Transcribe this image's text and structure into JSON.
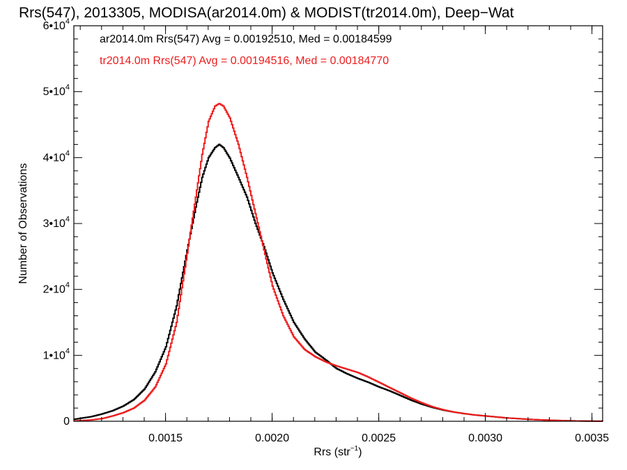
{
  "chart_data": {
    "type": "line",
    "title": "Rrs(547), 2013305, MODISA(ar2014.0m) & MODIST(tr2014.0m), Deep−Wat",
    "xlabel": "Rrs (str",
    "xlabel_sup": "−1",
    "xlabel_close": ")",
    "ylabel": "Number of Observations",
    "xlim": [
      0.00107,
      0.00355
    ],
    "ylim": [
      0,
      60000
    ],
    "x_ticks": [
      0.0015,
      0.002,
      0.0025,
      0.003,
      0.0035
    ],
    "x_tick_labels": [
      "0.0015",
      "0.0020",
      "0.0025",
      "0.0030",
      "0.0035"
    ],
    "y_ticks": [
      {
        "value": 0,
        "mantissa": "0",
        "exp": ""
      },
      {
        "value": 10000,
        "mantissa": "1•10",
        "exp": "4"
      },
      {
        "value": 20000,
        "mantissa": "2•10",
        "exp": "4"
      },
      {
        "value": 30000,
        "mantissa": "3•10",
        "exp": "4"
      },
      {
        "value": 40000,
        "mantissa": "4•10",
        "exp": "4"
      },
      {
        "value": 50000,
        "mantissa": "5•10",
        "exp": "4"
      },
      {
        "value": 60000,
        "mantissa": "6•10",
        "exp": "4"
      }
    ],
    "grid": false,
    "legend_position": "top-left",
    "series": [
      {
        "name": "ar2014.0m Rrs(547) Avg = 0.00192510, Med = 0.00184599",
        "color": "#000000",
        "points": [
          [
            0.00107,
            300
          ],
          [
            0.00115,
            700
          ],
          [
            0.0012,
            1100
          ],
          [
            0.00125,
            1600
          ],
          [
            0.0013,
            2300
          ],
          [
            0.00135,
            3300
          ],
          [
            0.0014,
            4900
          ],
          [
            0.00145,
            7500
          ],
          [
            0.0015,
            11300
          ],
          [
            0.00155,
            17500
          ],
          [
            0.0016,
            26000
          ],
          [
            0.00164,
            32500
          ],
          [
            0.00167,
            37000
          ],
          [
            0.0017,
            40000
          ],
          [
            0.00173,
            41500
          ],
          [
            0.00175,
            42000
          ],
          [
            0.00177,
            41500
          ],
          [
            0.0018,
            39900
          ],
          [
            0.00184,
            37000
          ],
          [
            0.00188,
            34000
          ],
          [
            0.00192,
            30000
          ],
          [
            0.00196,
            26500
          ],
          [
            0.002,
            22500
          ],
          [
            0.00205,
            18500
          ],
          [
            0.0021,
            15000
          ],
          [
            0.00215,
            12500
          ],
          [
            0.0022,
            10500
          ],
          [
            0.00225,
            9300
          ],
          [
            0.0023,
            8000
          ],
          [
            0.00235,
            7200
          ],
          [
            0.0024,
            6500
          ],
          [
            0.00245,
            5900
          ],
          [
            0.0025,
            5200
          ],
          [
            0.00255,
            4600
          ],
          [
            0.0026,
            3900
          ],
          [
            0.00265,
            3200
          ],
          [
            0.0027,
            2600
          ],
          [
            0.00275,
            2100
          ],
          [
            0.0028,
            1700
          ],
          [
            0.00285,
            1400
          ],
          [
            0.0029,
            1150
          ],
          [
            0.00295,
            950
          ],
          [
            0.003,
            800
          ],
          [
            0.00305,
            650
          ],
          [
            0.0031,
            500
          ],
          [
            0.00315,
            400
          ],
          [
            0.0032,
            300
          ],
          [
            0.00325,
            220
          ],
          [
            0.0033,
            160
          ],
          [
            0.00335,
            110
          ],
          [
            0.0034,
            70
          ],
          [
            0.00345,
            40
          ],
          [
            0.0035,
            20
          ],
          [
            0.00355,
            10
          ]
        ]
      },
      {
        "name": "tr2014.0m Rrs(547) Avg = 0.00194516, Med = 0.00184770",
        "color": "#ee1c1c",
        "points": [
          [
            0.00107,
            50
          ],
          [
            0.00115,
            200
          ],
          [
            0.0012,
            400
          ],
          [
            0.00125,
            800
          ],
          [
            0.0013,
            1300
          ],
          [
            0.00135,
            2000
          ],
          [
            0.0014,
            3200
          ],
          [
            0.00145,
            5200
          ],
          [
            0.0015,
            8700
          ],
          [
            0.00155,
            15000
          ],
          [
            0.0016,
            25500
          ],
          [
            0.00164,
            34000
          ],
          [
            0.00167,
            40500
          ],
          [
            0.0017,
            45500
          ],
          [
            0.00173,
            47800
          ],
          [
            0.00175,
            48200
          ],
          [
            0.00177,
            47800
          ],
          [
            0.0018,
            46000
          ],
          [
            0.00184,
            42000
          ],
          [
            0.00188,
            37000
          ],
          [
            0.00192,
            31500
          ],
          [
            0.00196,
            26000
          ],
          [
            0.002,
            20500
          ],
          [
            0.00205,
            16000
          ],
          [
            0.0021,
            12800
          ],
          [
            0.00215,
            10900
          ],
          [
            0.0022,
            9800
          ],
          [
            0.00225,
            9000
          ],
          [
            0.0023,
            8400
          ],
          [
            0.00235,
            7900
          ],
          [
            0.0024,
            7400
          ],
          [
            0.00245,
            6700
          ],
          [
            0.0025,
            5900
          ],
          [
            0.00255,
            5100
          ],
          [
            0.0026,
            4300
          ],
          [
            0.00265,
            3500
          ],
          [
            0.0027,
            2800
          ],
          [
            0.00275,
            2200
          ],
          [
            0.0028,
            1750
          ],
          [
            0.00285,
            1400
          ],
          [
            0.0029,
            1150
          ],
          [
            0.00295,
            950
          ],
          [
            0.003,
            800
          ],
          [
            0.00305,
            650
          ],
          [
            0.0031,
            500
          ],
          [
            0.00315,
            400
          ],
          [
            0.0032,
            300
          ],
          [
            0.00325,
            220
          ],
          [
            0.0033,
            160
          ],
          [
            0.00335,
            110
          ],
          [
            0.0034,
            70
          ],
          [
            0.00345,
            40
          ],
          [
            0.0035,
            20
          ],
          [
            0.00355,
            10
          ]
        ]
      }
    ]
  }
}
